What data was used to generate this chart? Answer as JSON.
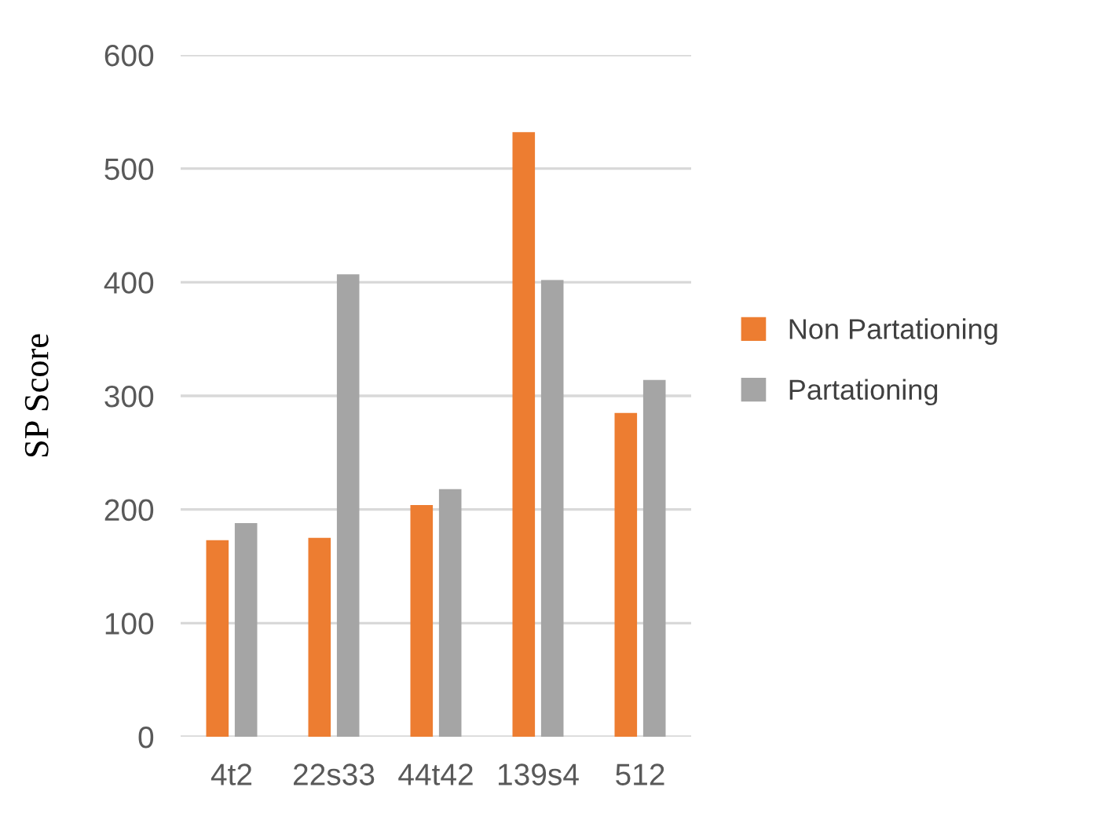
{
  "chart_data": {
    "type": "bar",
    "ylabel": "SP Score",
    "categories": [
      "4t2",
      "22s33",
      "44t42",
      "139s4",
      "512"
    ],
    "series": [
      {
        "name": "Non Partationing",
        "color": "#ed7d31",
        "values": [
          173,
          175,
          204,
          532,
          285
        ]
      },
      {
        "name": "Partationing",
        "color": "#a5a5a5",
        "values": [
          188,
          407,
          218,
          402,
          314
        ]
      }
    ],
    "ylim": [
      0,
      600
    ],
    "yticks": [
      0,
      100,
      200,
      300,
      400,
      500,
      600
    ],
    "grid": "y",
    "legend": "right"
  }
}
